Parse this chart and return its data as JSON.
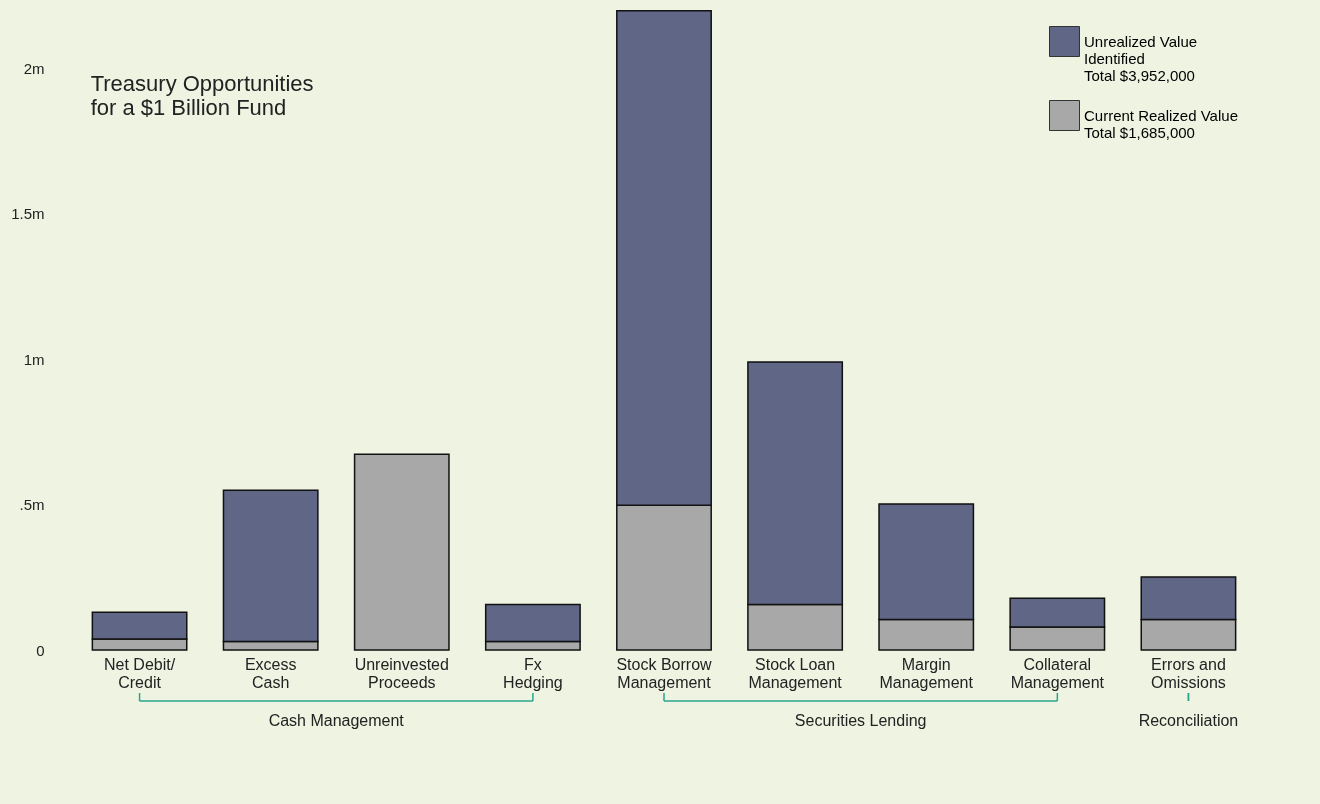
{
  "chart_data": {
    "type": "bar",
    "title": "Treasury Opportunities\nfor a $1 Billion Fund",
    "categories": [
      "Net Debit/\nCredit",
      "Excess\nCash",
      "Unreinvested\nProceeds",
      "Fx\nHedging",
      "Stock Borrow\nManagement",
      "Stock Loan\nManagement",
      "Margin\nManagement",
      "Collateral\nManagement",
      "Errors and\nOmissions"
    ],
    "series": [
      {
        "name": "Current Realized Value\nTotal $1,685,000",
        "color": "#a8a8a8",
        "values": [
          0.038,
          0.029,
          0.673,
          0.029,
          0.498,
          0.156,
          0.105,
          0.079,
          0.105
        ]
      },
      {
        "name": "Unrealized Value\nIdentified\nTotal $3,952,000",
        "color": "#5f6686",
        "values": [
          0.092,
          0.52,
          null,
          0.127,
          1.699,
          0.834,
          0.397,
          0.099,
          0.146
        ]
      }
    ],
    "stacked": true,
    "ylim": [
      0,
      2.2
    ],
    "yticks": [
      0,
      {
        "value": 0.5,
        "label": ".5m"
      },
      {
        "value": 1,
        "label": "1m"
      },
      {
        "value": 1.5,
        "label": "1.5m"
      },
      {
        "value": 2,
        "label": "2m"
      }
    ],
    "legend": "top right",
    "annotations": [
      "Cash Management",
      "Securities Lending",
      "Reconciliation"
    ]
  }
}
